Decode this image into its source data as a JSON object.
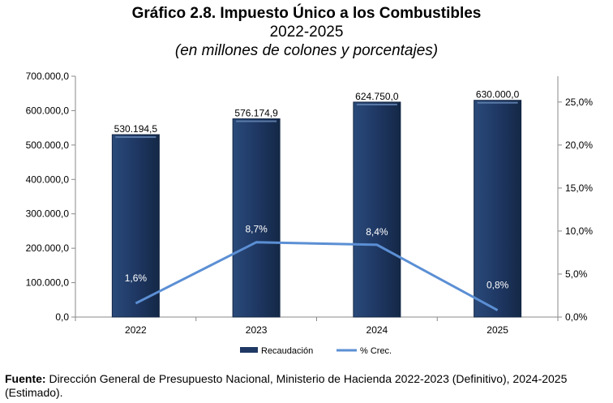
{
  "chart_data": {
    "type": "bar+line",
    "title": "Gráfico 2.8. Impuesto Único a los Combustibles",
    "subtitle": "2022-2025",
    "unit_note": "(en millones de colones y porcentajes)",
    "categories": [
      "2022",
      "2023",
      "2024",
      "2025"
    ],
    "series": [
      {
        "name": "Recaudación",
        "type": "bar",
        "axis": "left",
        "values": [
          530194.5,
          576174.9,
          624750.0,
          630000.0
        ],
        "labels": [
          "530.194,5",
          "576.174,9",
          "624.750,0",
          "630.000,0"
        ],
        "color": "#1f3864"
      },
      {
        "name": "% Crec.",
        "type": "line",
        "axis": "right",
        "values": [
          1.6,
          8.7,
          8.4,
          0.8
        ],
        "labels": [
          "1,6%",
          "8,7%",
          "8,4%",
          "0,8%"
        ],
        "color": "#5b8fd4"
      }
    ],
    "left_axis": {
      "ylim": [
        0,
        700000
      ],
      "ticks": [
        "0,0",
        "100.000,0",
        "200.000,0",
        "300.000,0",
        "400.000,0",
        "500.000,0",
        "600.000,0",
        "700.000,0"
      ]
    },
    "right_axis": {
      "ylim": [
        0,
        28
      ],
      "ticks": [
        "0,0%",
        "5,0%",
        "10,0%",
        "15,0%",
        "20,0%",
        "25,0%"
      ]
    },
    "grid": false,
    "legend": "bottom"
  },
  "footer": {
    "label": "Fuente:",
    "text": " Dirección General de Presupuesto Nacional, Ministerio de Hacienda 2022-2023 (Definitivo), 2024-2025 (Estimado)."
  }
}
